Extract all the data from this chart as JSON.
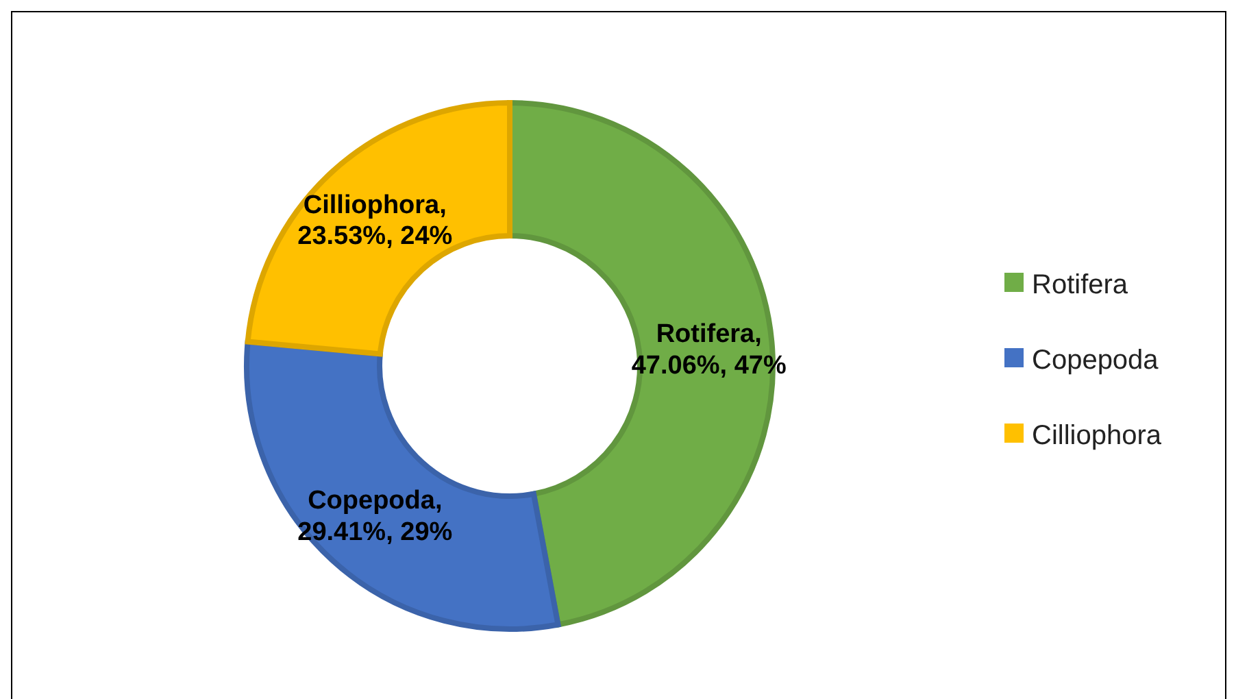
{
  "chart_data": {
    "type": "donut",
    "categories": [
      "Rotifera",
      "Copepoda",
      "Cilliophora"
    ],
    "values": [
      47.06,
      29.41,
      23.53
    ],
    "value_labels": [
      "Rotifera, 47.06%, 47%",
      "Copepoda, 29.41%, 29%",
      "Cilliophora, 23.53%, 24%"
    ],
    "colors": [
      "#70ad47",
      "#4472c4",
      "#ffc000"
    ],
    "legend": "right"
  }
}
